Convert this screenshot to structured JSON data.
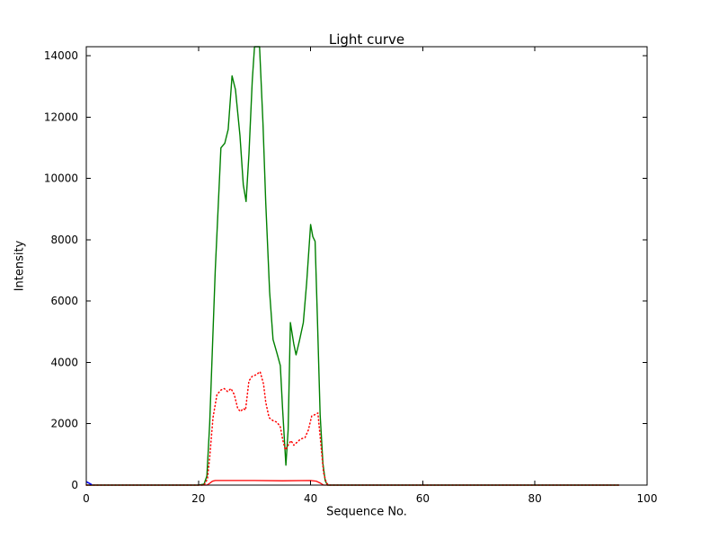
{
  "figure": {
    "title": "Light curve",
    "xlabel": "Sequence No.",
    "ylabel": "Intensity",
    "background_color": "#ffffff",
    "axis_color": "#000000"
  },
  "chart_data": {
    "type": "line",
    "title": "Light curve",
    "xlabel": "Sequence No.",
    "ylabel": "Intensity",
    "xlim": [
      0,
      100
    ],
    "ylim": [
      0,
      14300
    ],
    "xticks": [
      0,
      20,
      40,
      60,
      80,
      100
    ],
    "yticks": [
      0,
      2000,
      4000,
      6000,
      8000,
      10000,
      12000,
      14000
    ],
    "grid": false,
    "legend": "none",
    "series": [
      {
        "name": "green-solid-intensity",
        "color": "#008000",
        "style": "solid",
        "width": 1.4,
        "points": [
          [
            0,
            0
          ],
          [
            20,
            0
          ],
          [
            21,
            30
          ],
          [
            21.5,
            300
          ],
          [
            22,
            2000
          ],
          [
            23,
            7000
          ],
          [
            24,
            11000
          ],
          [
            24.7,
            11150
          ],
          [
            25.3,
            11600
          ],
          [
            26,
            13350
          ],
          [
            26.6,
            12900
          ],
          [
            27.4,
            11400
          ],
          [
            28,
            9800
          ],
          [
            28.5,
            9250
          ],
          [
            29,
            10800
          ],
          [
            29.6,
            13200
          ],
          [
            30,
            14300
          ],
          [
            30.9,
            14300
          ],
          [
            31.5,
            11800
          ],
          [
            32,
            9200
          ],
          [
            32.7,
            6300
          ],
          [
            33.3,
            4750
          ],
          [
            34,
            4300
          ],
          [
            34.6,
            3900
          ],
          [
            35,
            2500
          ],
          [
            35.6,
            650
          ],
          [
            36,
            1800
          ],
          [
            36.4,
            5300
          ],
          [
            37,
            4600
          ],
          [
            37.4,
            4250
          ],
          [
            38,
            4700
          ],
          [
            38.7,
            5300
          ],
          [
            39.3,
            6600
          ],
          [
            40,
            8500
          ],
          [
            40.4,
            8100
          ],
          [
            40.8,
            7950
          ],
          [
            41.2,
            5500
          ],
          [
            41.7,
            2300
          ],
          [
            42.2,
            700
          ],
          [
            42.6,
            150
          ],
          [
            43,
            0
          ],
          [
            95,
            0
          ]
        ]
      },
      {
        "name": "red-dotted-intensity",
        "color": "#ff0000",
        "style": "dotted",
        "width": 1.5,
        "points": [
          [
            0,
            0
          ],
          [
            21,
            0
          ],
          [
            21.6,
            200
          ],
          [
            22,
            900
          ],
          [
            22.6,
            2200
          ],
          [
            23.3,
            2950
          ],
          [
            24,
            3100
          ],
          [
            24.6,
            3150
          ],
          [
            25.2,
            3050
          ],
          [
            25.8,
            3150
          ],
          [
            26.4,
            2950
          ],
          [
            27,
            2500
          ],
          [
            27.5,
            2400
          ],
          [
            28,
            2500
          ],
          [
            28.4,
            2450
          ],
          [
            29,
            3400
          ],
          [
            29.6,
            3550
          ],
          [
            30.3,
            3600
          ],
          [
            31,
            3700
          ],
          [
            31.6,
            3300
          ],
          [
            32,
            2700
          ],
          [
            32.6,
            2200
          ],
          [
            33.3,
            2100
          ],
          [
            34,
            2050
          ],
          [
            34.6,
            1900
          ],
          [
            35,
            1500
          ],
          [
            35.5,
            1150
          ],
          [
            36,
            1300
          ],
          [
            36.5,
            1450
          ],
          [
            37,
            1300
          ],
          [
            37.6,
            1400
          ],
          [
            38.2,
            1500
          ],
          [
            39,
            1550
          ],
          [
            39.6,
            1800
          ],
          [
            40.2,
            2250
          ],
          [
            40.8,
            2300
          ],
          [
            41.3,
            2350
          ],
          [
            41.8,
            1400
          ],
          [
            42.3,
            400
          ],
          [
            42.8,
            80
          ],
          [
            43.2,
            0
          ],
          [
            95,
            0
          ]
        ]
      },
      {
        "name": "red-solid-baseline",
        "color": "#ff0000",
        "style": "solid",
        "width": 1.3,
        "points": [
          [
            0,
            0
          ],
          [
            21.5,
            0
          ],
          [
            22,
            60
          ],
          [
            22.5,
            130
          ],
          [
            23,
            150
          ],
          [
            30,
            150
          ],
          [
            35,
            140
          ],
          [
            40,
            150
          ],
          [
            41,
            130
          ],
          [
            41.8,
            60
          ],
          [
            42.3,
            0
          ],
          [
            95,
            0
          ]
        ]
      },
      {
        "name": "blue-origin-mark",
        "color": "#0000ff",
        "style": "solid",
        "width": 1.6,
        "points": [
          [
            0,
            110
          ],
          [
            0.7,
            40
          ],
          [
            1,
            10
          ]
        ]
      }
    ]
  }
}
